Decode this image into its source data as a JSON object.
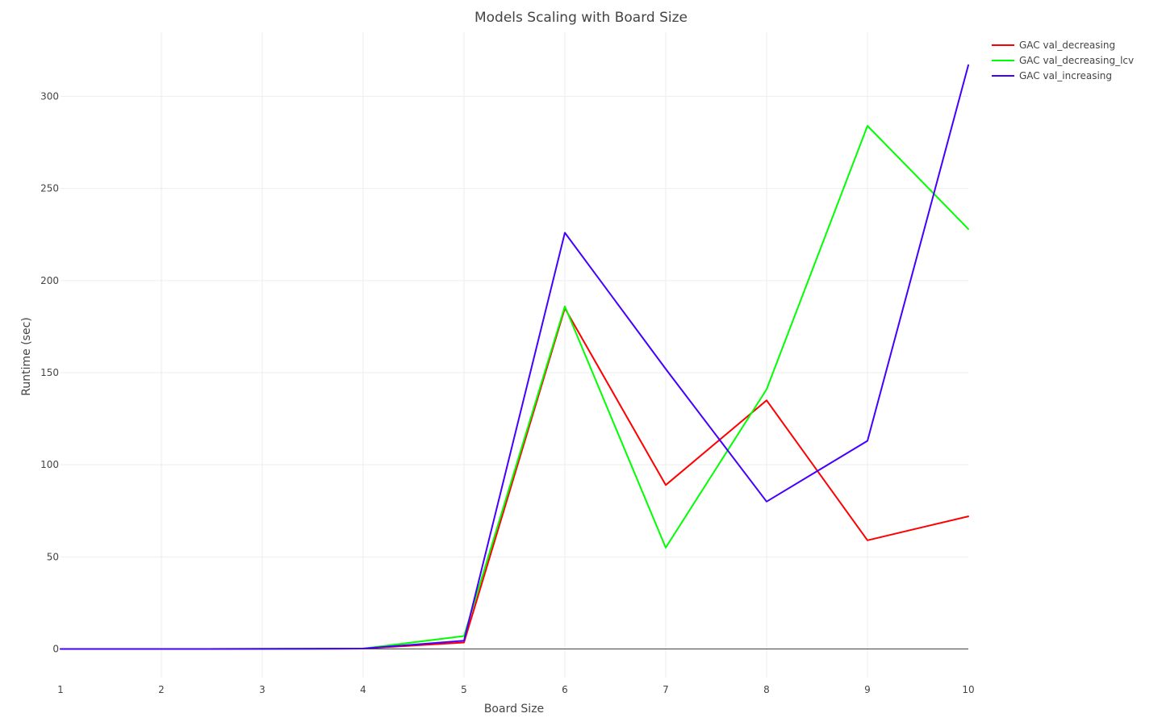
{
  "chart_data": {
    "type": "line",
    "title": "Models Scaling with Board Size",
    "xlabel": "Board Size",
    "ylabel": "Runtime (sec)",
    "x": [
      1,
      2,
      3,
      4,
      5,
      6,
      7,
      8,
      9,
      10
    ],
    "xlim": [
      1,
      10
    ],
    "ylim": [
      -15,
      333
    ],
    "x_ticks": [
      "1",
      "2",
      "3",
      "4",
      "5",
      "6",
      "7",
      "8",
      "9",
      "10"
    ],
    "y_ticks": [
      0,
      50,
      100,
      150,
      200,
      250,
      300
    ],
    "grid": true,
    "legend_position": "top-right",
    "series": [
      {
        "name": "GAC val_decreasing",
        "color": "#ff0000",
        "values": [
          0,
          0,
          0.05,
          0.2,
          3.5,
          185,
          89,
          135,
          59,
          72
        ]
      },
      {
        "name": "GAC val_decreasing_lcv",
        "color": "#00ff00",
        "values": [
          0,
          0,
          0.05,
          0.2,
          7,
          186,
          55,
          141,
          284,
          228
        ]
      },
      {
        "name": "GAC val_increasing",
        "color": "#4400ff",
        "values": [
          0,
          0,
          0.05,
          0.2,
          4.5,
          226,
          152,
          80,
          113,
          317
        ]
      }
    ]
  }
}
